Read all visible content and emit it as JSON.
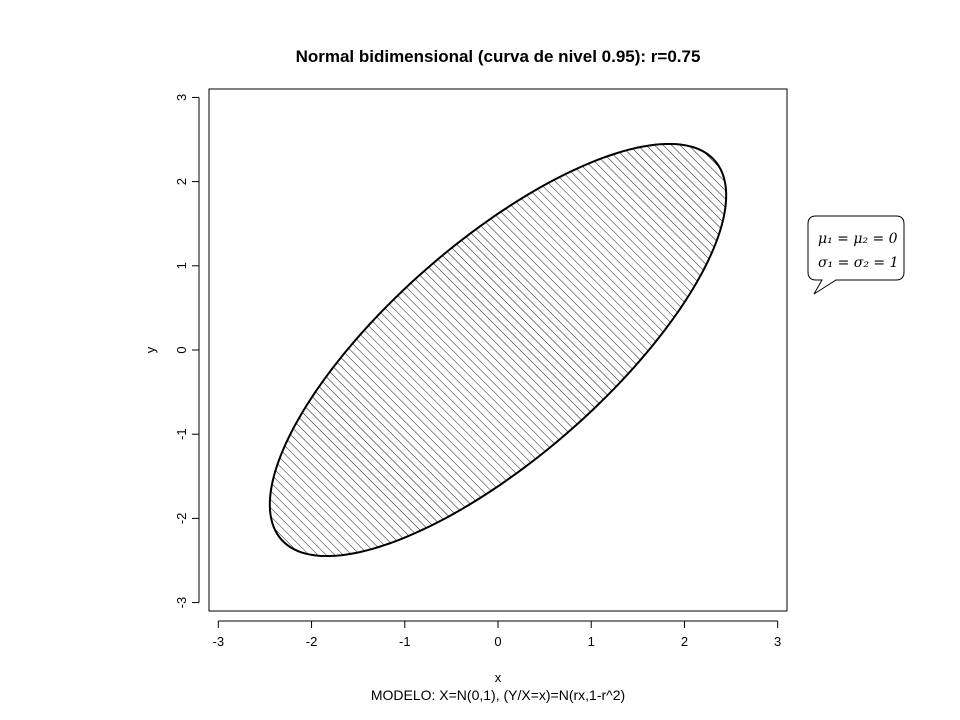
{
  "chart_data": {
    "type": "contour",
    "title": "Normal bidimensional (curva de nivel 0.95): r=0.75",
    "xlabel": "x",
    "ylabel": "y",
    "subtitle": "MODELO: X=N(0,1), (Y/X=x)=N(rx,1-r^2)",
    "xlim": [
      -3.1,
      3.1
    ],
    "ylim": [
      -3.1,
      3.1
    ],
    "x_ticks": [
      -3,
      -2,
      -1,
      0,
      1,
      2,
      3
    ],
    "y_ticks": [
      -3,
      -2,
      -1,
      0,
      1,
      2,
      3
    ],
    "x_tick_labels": [
      "-3",
      "-2",
      "-1",
      "0",
      "1",
      "2",
      "3"
    ],
    "y_tick_labels": [
      "-3",
      "-2",
      "-1",
      "0",
      "1",
      "2",
      "3"
    ],
    "grid": false,
    "contour": {
      "level": 0.95,
      "r": 0.75,
      "mu": [
        0,
        0
      ],
      "sigma": [
        1,
        1
      ],
      "chi2_quantile": 5.991,
      "fill": "hatched",
      "color": "#000000"
    },
    "annotation": {
      "line1": "μ₁ = μ₂ = 0",
      "line2": "σ₁ = σ₂ = 1"
    }
  }
}
